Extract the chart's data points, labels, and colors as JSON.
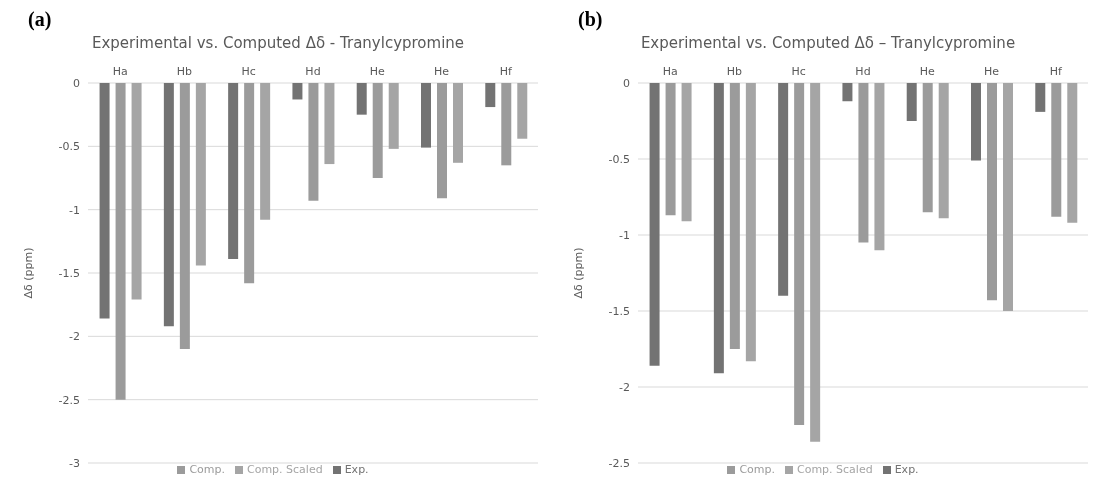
{
  "chart_data": [
    {
      "type": "bar",
      "title": "Experimental vs. Computed Δδ - Tranylcypromine",
      "annotations": [
        "(a)"
      ],
      "ylabel": "Δδ (ppm)",
      "categories": [
        "Ha",
        "Hb",
        "Hc",
        "Hd",
        "He",
        "He",
        "Hf"
      ],
      "series": [
        {
          "name": "Exp.",
          "color": "#737373",
          "values": [
            -1.86,
            -1.92,
            -1.39,
            -0.13,
            -0.25,
            -0.51,
            -0.19
          ]
        },
        {
          "name": "Comp.",
          "color": "#9b9b9b",
          "values": [
            -2.5,
            -2.1,
            -1.58,
            -0.93,
            -0.75,
            -0.91,
            -0.65
          ]
        },
        {
          "name": "Comp. Scaled",
          "color": "#a5a5a5",
          "values": [
            -1.71,
            -1.44,
            -1.08,
            -0.64,
            -0.52,
            -0.63,
            -0.44
          ]
        }
      ],
      "ylim": [
        -3,
        0
      ],
      "yticks": [
        -3,
        -2.5,
        -2,
        -1.5,
        -1,
        -0.5,
        0
      ],
      "grid": "y",
      "legend": "bottom"
    },
    {
      "type": "bar",
      "title": "Experimental vs. Computed Δδ – Tranylcypromine",
      "annotations": [
        "(b)"
      ],
      "ylabel": "Δδ (ppm)",
      "categories": [
        "Ha",
        "Hb",
        "Hc",
        "Hd",
        "He",
        "He",
        "Hf"
      ],
      "series": [
        {
          "name": "Exp.",
          "color": "#737373",
          "values": [
            -1.86,
            -1.91,
            -1.4,
            -0.12,
            -0.25,
            -0.51,
            -0.19
          ]
        },
        {
          "name": "Comp.",
          "color": "#9b9b9b",
          "values": [
            -0.87,
            -1.75,
            -2.25,
            -1.05,
            -0.85,
            -1.43,
            -0.88
          ]
        },
        {
          "name": "Comp. Scaled",
          "color": "#a5a5a5",
          "values": [
            -0.91,
            -1.83,
            -2.36,
            -1.1,
            -0.89,
            -1.5,
            -0.92
          ]
        }
      ],
      "ylim": [
        -2.5,
        0
      ],
      "yticks": [
        -2.5,
        -2,
        -1.5,
        -1,
        -0.5,
        0
      ],
      "grid": "y",
      "legend": "bottom"
    }
  ]
}
